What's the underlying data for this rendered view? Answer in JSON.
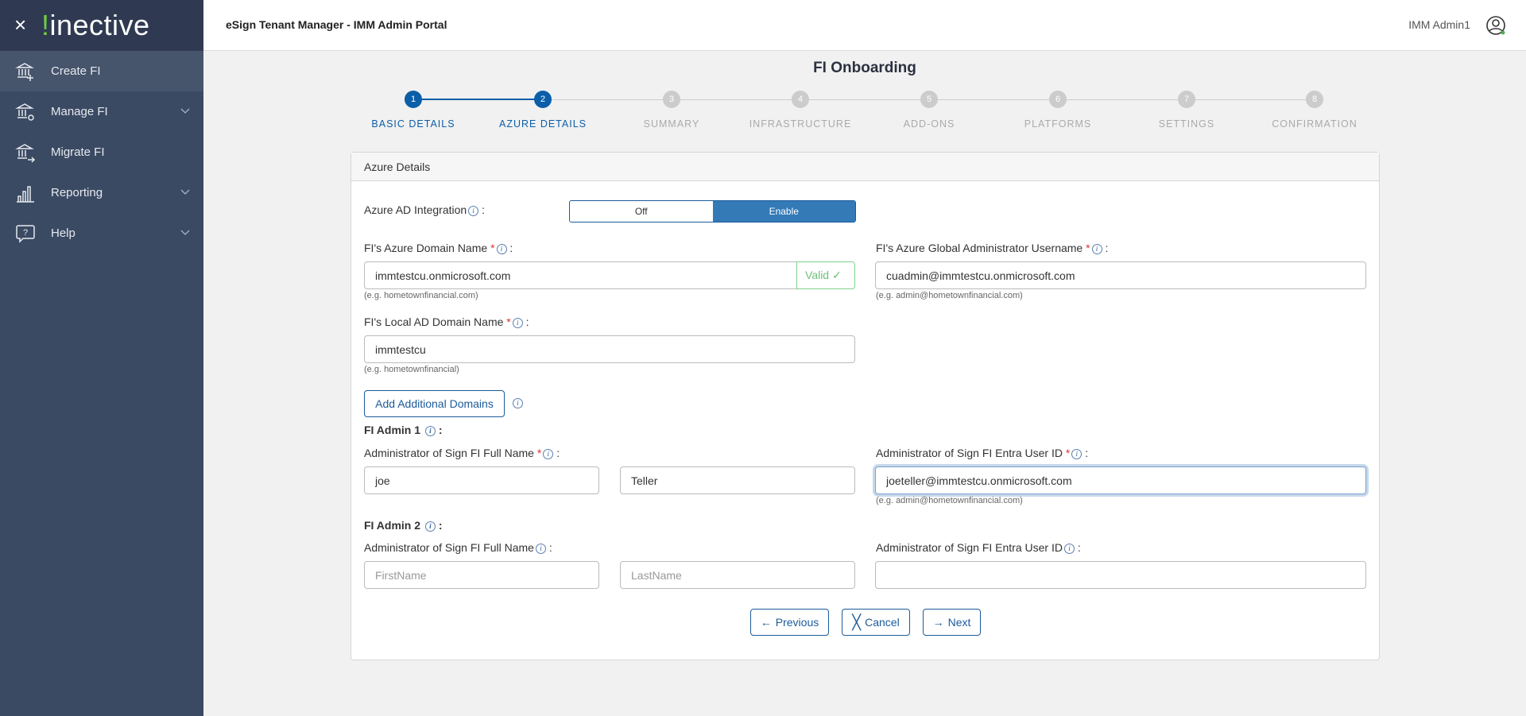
{
  "sidebar": {
    "logo": "kinective",
    "items": [
      {
        "label": "Create FI",
        "icon": "bank-plus-icon",
        "active": true
      },
      {
        "label": "Manage FI",
        "icon": "bank-gear-icon",
        "expandable": true
      },
      {
        "label": "Migrate FI",
        "icon": "bank-arrow-icon"
      },
      {
        "label": "Reporting",
        "icon": "bar-chart-icon",
        "expandable": true
      },
      {
        "label": "Help",
        "icon": "help-bubble-icon",
        "expandable": true
      }
    ]
  },
  "header": {
    "title": "eSign Tenant Manager - IMM Admin Portal",
    "user": "IMM Admin1"
  },
  "page": {
    "title": "FI Onboarding"
  },
  "stepper": {
    "current": 2,
    "steps": [
      {
        "num": "1",
        "label": "BASIC DETAILS"
      },
      {
        "num": "2",
        "label": "AZURE DETAILS"
      },
      {
        "num": "3",
        "label": "SUMMARY"
      },
      {
        "num": "4",
        "label": "INFRASTRUCTURE"
      },
      {
        "num": "5",
        "label": "ADD-ONS"
      },
      {
        "num": "6",
        "label": "PLATFORMS"
      },
      {
        "num": "7",
        "label": "SETTINGS"
      },
      {
        "num": "8",
        "label": "CONFIRMATION"
      }
    ]
  },
  "card": {
    "title": "Azure Details",
    "azure_ad": {
      "label": "Azure AD Integration",
      "off": "Off",
      "on": "Enable",
      "selected": "Enable"
    },
    "domain": {
      "label": "FI's Azure Domain Name",
      "value": "immtestcu.onmicrosoft.com",
      "valid": "Valid",
      "hint": "(e.g. hometownfinancial.com)"
    },
    "global_admin": {
      "label": "FI's Azure Global Administrator Username",
      "value": "cuadmin@immtestcu.onmicrosoft.com",
      "hint": "(e.g. admin@hometownfinancial.com)"
    },
    "local_domain": {
      "label": "FI's Local AD Domain Name",
      "value": "immtestcu",
      "hint": "(e.g. hometownfinancial)"
    },
    "add_domains": "Add Additional Domains",
    "admin1": {
      "title": "FI Admin 1",
      "name_label": "Administrator of Sign FI Full Name",
      "first": "joe",
      "last": "Teller",
      "id_label": "Administrator of Sign FI Entra User ID",
      "id_value": "joeteller@immtestcu.onmicrosoft.com",
      "hint": "(e.g. admin@hometownfinancial.com)"
    },
    "admin2": {
      "title": "FI Admin 2",
      "name_label": "Administrator of Sign FI Full Name",
      "first_ph": "FirstName",
      "last_ph": "LastName",
      "id_label": "Administrator of Sign FI Entra User ID",
      "id_value": ""
    },
    "buttons": {
      "previous": "Previous",
      "cancel": "Cancel",
      "next": "Next"
    }
  },
  "colors": {
    "primary": "#0b5ea8",
    "sidebar": "#3b4a63",
    "enable": "#337ab7",
    "valid": "#6cc07a"
  }
}
